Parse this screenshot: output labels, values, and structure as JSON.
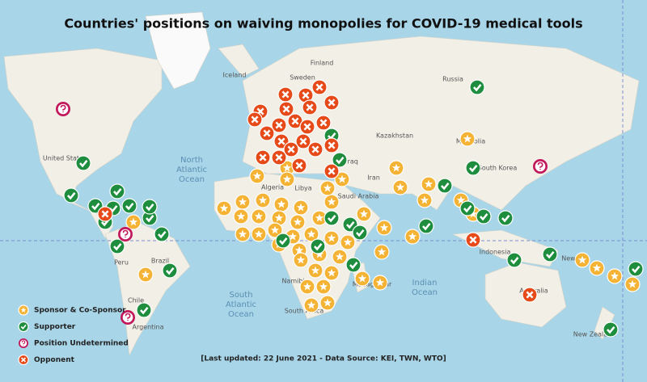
{
  "title": "Countries' positions on waiving monopolies for COVID-19 medical tools",
  "legend": [
    "Sponsor & Co-Sponsor",
    "Supporter",
    "Position Undetermined",
    "Opponent"
  ],
  "footnote": "[Last updated: 22 June 2021 - Data Source: KEI, TWN, WTO]",
  "places": [
    "Iceland",
    "Finland",
    "Sweden",
    "Russia",
    "Kazakhstan",
    "Mongolia",
    "South Korea",
    "Iran",
    "Iraq",
    "Saudi Arabia",
    "Algeria",
    "Libya",
    "United States",
    "Peru",
    "Brazil",
    "Chile",
    "Argentina",
    "Indonesia",
    "New",
    "Namibia",
    "South Africa",
    "Madagascar",
    "New Zealand",
    "Australia"
  ],
  "oceans": [
    [
      "North",
      "Atlantic",
      "Ocean"
    ],
    [
      "South",
      "Atlantic",
      "Ocean"
    ],
    [
      "Indian",
      "Ocean"
    ]
  ]
}
